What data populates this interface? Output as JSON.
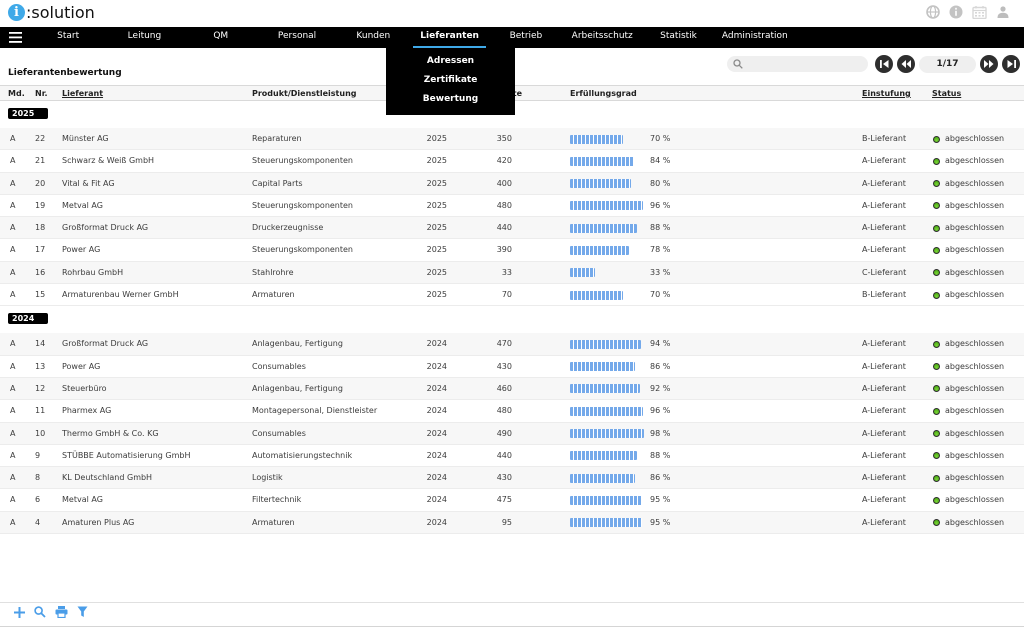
{
  "brand": {
    "logo_mark": "i",
    "logo_text": ":solution"
  },
  "topbar_icons": [
    "globe-icon",
    "info-icon",
    "calendar-icon",
    "user-icon"
  ],
  "nav": {
    "items": [
      "Start",
      "Leitung",
      "QM",
      "Personal",
      "Kunden",
      "Lieferanten",
      "Betrieb",
      "Arbeitsschutz",
      "Statistik",
      "Administration"
    ],
    "active": "Lieferanten",
    "dropdown": [
      "Adressen",
      "Zertifikate",
      "Bewertung"
    ]
  },
  "page": {
    "title": "Lieferantenbewertung"
  },
  "search": {
    "value": "",
    "placeholder": ""
  },
  "pager": {
    "current": "1/17",
    "buttons": [
      "first-page-icon",
      "prev-page-icon",
      "next-page-icon",
      "last-page-icon"
    ]
  },
  "table": {
    "headers": {
      "md": "Md.",
      "nr": "Nr.",
      "lieferant": "Lieferant",
      "produkt": "Produkt/Dienstleistung",
      "punkte_partial": "te",
      "erfuellungsgrad": "Erfüllungsgrad",
      "einstufung": "Einstufung",
      "status": "Status"
    },
    "sections": [
      {
        "year": "2025",
        "rows": [
          {
            "md": "A",
            "nr": "22",
            "lieferant": "Münster AG",
            "produkt": "Reparaturen",
            "jahr": "2025",
            "punkte": "350",
            "erfuellungsgrad": 70,
            "einstufung": "B-Lieferant",
            "status": "abgeschlossen"
          },
          {
            "md": "A",
            "nr": "21",
            "lieferant": "Schwarz & Weiß GmbH",
            "produkt": "Steuerungskomponenten",
            "jahr": "2025",
            "punkte": "420",
            "erfuellungsgrad": 84,
            "einstufung": "A-Lieferant",
            "status": "abgeschlossen"
          },
          {
            "md": "A",
            "nr": "20",
            "lieferant": "Vital & Fit AG",
            "produkt": "Capital Parts",
            "jahr": "2025",
            "punkte": "400",
            "erfuellungsgrad": 80,
            "einstufung": "A-Lieferant",
            "status": "abgeschlossen"
          },
          {
            "md": "A",
            "nr": "19",
            "lieferant": "Metval AG",
            "produkt": "Steuerungskomponenten",
            "jahr": "2025",
            "punkte": "480",
            "erfuellungsgrad": 96,
            "einstufung": "A-Lieferant",
            "status": "abgeschlossen"
          },
          {
            "md": "A",
            "nr": "18",
            "lieferant": "Großformat Druck AG",
            "produkt": "Druckerzeugnisse",
            "jahr": "2025",
            "punkte": "440",
            "erfuellungsgrad": 88,
            "einstufung": "A-Lieferant",
            "status": "abgeschlossen"
          },
          {
            "md": "A",
            "nr": "17",
            "lieferant": "Power AG",
            "produkt": "Steuerungskomponenten",
            "jahr": "2025",
            "punkte": "390",
            "erfuellungsgrad": 78,
            "einstufung": "A-Lieferant",
            "status": "abgeschlossen"
          },
          {
            "md": "A",
            "nr": "16",
            "lieferant": "Rohrbau GmbH",
            "produkt": "Stahlrohre",
            "jahr": "2025",
            "punkte": "33",
            "erfuellungsgrad": 33,
            "einstufung": "C-Lieferant",
            "status": "abgeschlossen"
          },
          {
            "md": "A",
            "nr": "15",
            "lieferant": "Armaturenbau Werner GmbH",
            "produkt": "Armaturen",
            "jahr": "2025",
            "punkte": "70",
            "erfuellungsgrad": 70,
            "einstufung": "B-Lieferant",
            "status": "abgeschlossen"
          }
        ]
      },
      {
        "year": "2024",
        "rows": [
          {
            "md": "A",
            "nr": "14",
            "lieferant": "Großformat Druck AG",
            "produkt": "Anlagenbau, Fertigung",
            "jahr": "2024",
            "punkte": "470",
            "erfuellungsgrad": 94,
            "einstufung": "A-Lieferant",
            "status": "abgeschlossen"
          },
          {
            "md": "A",
            "nr": "13",
            "lieferant": "Power AG",
            "produkt": "Consumables",
            "jahr": "2024",
            "punkte": "430",
            "erfuellungsgrad": 86,
            "einstufung": "A-Lieferant",
            "status": "abgeschlossen"
          },
          {
            "md": "A",
            "nr": "12",
            "lieferant": "Steuerbüro",
            "produkt": "Anlagenbau, Fertigung",
            "jahr": "2024",
            "punkte": "460",
            "erfuellungsgrad": 92,
            "einstufung": "A-Lieferant",
            "status": "abgeschlossen"
          },
          {
            "md": "A",
            "nr": "11",
            "lieferant": "Pharmex AG",
            "produkt": "Montagepersonal, Dienstleister",
            "jahr": "2024",
            "punkte": "480",
            "erfuellungsgrad": 96,
            "einstufung": "A-Lieferant",
            "status": "abgeschlossen"
          },
          {
            "md": "A",
            "nr": "10",
            "lieferant": "Thermo GmbH & Co. KG",
            "produkt": "Consumables",
            "jahr": "2024",
            "punkte": "490",
            "erfuellungsgrad": 98,
            "einstufung": "A-Lieferant",
            "status": "abgeschlossen"
          },
          {
            "md": "A",
            "nr": "9",
            "lieferant": "STÜBBE Automatisierung GmbH",
            "produkt": "Automatisierungstechnik",
            "jahr": "2024",
            "punkte": "440",
            "erfuellungsgrad": 88,
            "einstufung": "A-Lieferant",
            "status": "abgeschlossen"
          },
          {
            "md": "A",
            "nr": "8",
            "lieferant": "KL Deutschland GmbH",
            "produkt": "Logistik",
            "jahr": "2024",
            "punkte": "430",
            "erfuellungsgrad": 86,
            "einstufung": "A-Lieferant",
            "status": "abgeschlossen"
          },
          {
            "md": "A",
            "nr": "6",
            "lieferant": "Metval AG",
            "produkt": "Filtertechnik",
            "jahr": "2024",
            "punkte": "475",
            "erfuellungsgrad": 95,
            "einstufung": "A-Lieferant",
            "status": "abgeschlossen"
          },
          {
            "md": "A",
            "nr": "4",
            "lieferant": "Amaturen Plus AG",
            "produkt": "Armaturen",
            "jahr": "2024",
            "punkte": "95",
            "erfuellungsgrad": 95,
            "einstufung": "A-Lieferant",
            "status": "abgeschlossen"
          }
        ]
      }
    ],
    "percent_suffix": " %"
  },
  "footer_tools": [
    "add-icon",
    "search-icon",
    "print-icon",
    "filter-icon"
  ],
  "colors": {
    "accent_blue": "#3fa9e8",
    "bar_blue": "#74a9ea",
    "status_green": "#4fae17",
    "nav_black": "#000000"
  }
}
